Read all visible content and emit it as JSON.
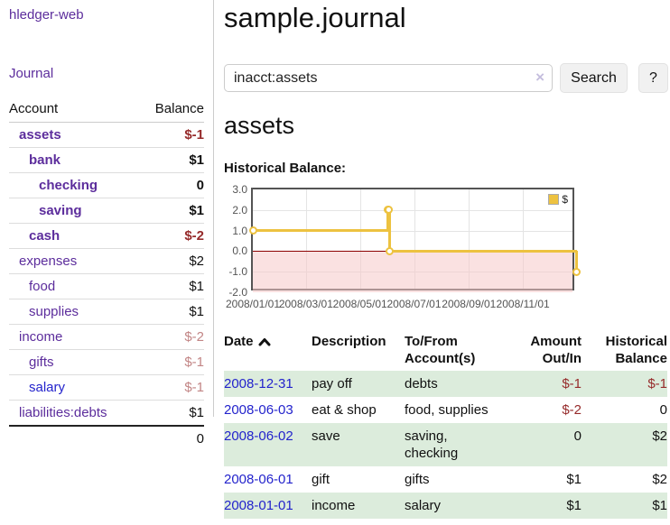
{
  "app": {
    "brand": "hledger-web",
    "nav_journal": "Journal"
  },
  "sidebar": {
    "account_header": "Account",
    "balance_header": "Balance",
    "total": "0",
    "accounts": [
      {
        "label": "assets",
        "balance": "$-1",
        "depth": 1,
        "matched": true,
        "unvisited": false
      },
      {
        "label": "bank",
        "balance": "$1",
        "depth": 2,
        "matched": true,
        "unvisited": false
      },
      {
        "label": "checking",
        "balance": "0",
        "depth": 3,
        "matched": true,
        "unvisited": false
      },
      {
        "label": "saving",
        "balance": "$1",
        "depth": 3,
        "matched": true,
        "unvisited": false
      },
      {
        "label": "cash",
        "balance": "$-2",
        "depth": 2,
        "matched": true,
        "unvisited": false
      },
      {
        "label": "expenses",
        "balance": "$2",
        "depth": 1,
        "matched": false,
        "unvisited": false
      },
      {
        "label": "food",
        "balance": "$1",
        "depth": 2,
        "matched": false,
        "unvisited": false
      },
      {
        "label": "supplies",
        "balance": "$1",
        "depth": 2,
        "matched": false,
        "unvisited": false
      },
      {
        "label": "income",
        "balance": "$-2",
        "depth": 1,
        "matched": false,
        "unvisited": false
      },
      {
        "label": "gifts",
        "balance": "$-1",
        "depth": 2,
        "matched": false,
        "unvisited": false
      },
      {
        "label": "salary",
        "balance": "$-1",
        "depth": 2,
        "matched": false,
        "unvisited": true
      },
      {
        "label": "liabilities:debts",
        "balance": "$1",
        "depth": 1,
        "matched": false,
        "unvisited": false
      }
    ]
  },
  "header": {
    "title": "sample.journal"
  },
  "search": {
    "value": "inacct:assets",
    "clear_icon": "×",
    "button_label": "Search",
    "help_label": "?"
  },
  "account_page": {
    "heading": "assets",
    "chart_heading": "Historical Balance:"
  },
  "chart_data": {
    "type": "line",
    "step": true,
    "title": "Historical Balance:",
    "series": [
      {
        "name": "$",
        "color": "#edc240",
        "points": [
          [
            "2008-01-01",
            1
          ],
          [
            "2008-06-01",
            2
          ],
          [
            "2008-06-02",
            2
          ],
          [
            "2008-06-03",
            0
          ],
          [
            "2008-12-31",
            -1
          ]
        ]
      }
    ],
    "xrange": [
      "2008-01-01",
      "2008-12-31"
    ],
    "ylim": [
      -2,
      3
    ],
    "yticks": [
      "3.0",
      "2.0",
      "1.0",
      "0.0",
      "-1.0",
      "-2.0"
    ],
    "xticks": [
      "2008/01/01",
      "2008/03/01",
      "2008/05/01",
      "2008/07/01",
      "2008/09/01",
      "2008/11/01"
    ],
    "legend": {
      "label": "$",
      "position": "top-right"
    },
    "grid": true,
    "zero_line_color": "#8b0000",
    "negative_fill_color": "rgba(246,201,201,0.55)"
  },
  "register": {
    "headers": {
      "date": "Date",
      "description": "Description",
      "accounts": "To/From Account(s)",
      "amount": "Amount Out/In",
      "balance": "Historical Balance"
    },
    "rows": [
      {
        "date": "2008-12-31",
        "description": "pay off",
        "accounts": "debts",
        "amount": "$-1",
        "balance": "$-1"
      },
      {
        "date": "2008-06-03",
        "description": "eat & shop",
        "accounts": "food, supplies",
        "amount": "$-2",
        "balance": "0"
      },
      {
        "date": "2008-06-02",
        "description": "save",
        "accounts": "saving, checking",
        "amount": "0",
        "balance": "$2"
      },
      {
        "date": "2008-06-01",
        "description": "gift",
        "accounts": "gifts",
        "amount": "$1",
        "balance": "$2"
      },
      {
        "date": "2008-01-01",
        "description": "income",
        "accounts": "salary",
        "amount": "$1",
        "balance": "$1"
      }
    ]
  },
  "colors": {
    "accent_purple": "#5c2d9c",
    "link_blue": "#2323cc",
    "negative_red": "#962b2b",
    "negative_muted": "#c28585",
    "row_stripe_green": "#dcecdc",
    "series_yellow": "#edc240"
  }
}
